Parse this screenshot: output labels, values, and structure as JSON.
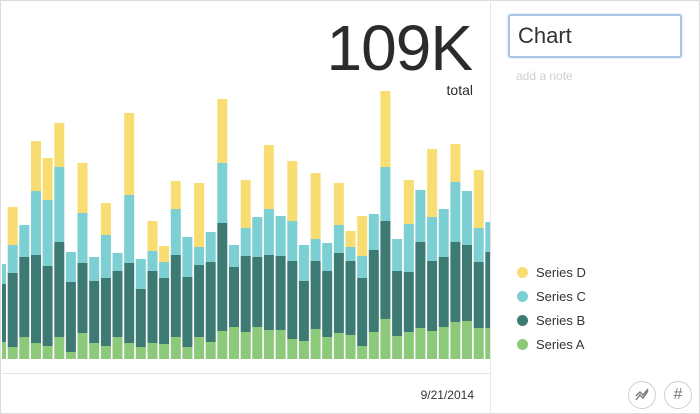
{
  "summary": {
    "value": "109K",
    "caption": "total"
  },
  "editor": {
    "title_value": "Chart",
    "note_placeholder": "add a note"
  },
  "toolbar": {
    "chart_icon": "line-chart-icon",
    "number_icon": "hash-icon",
    "number_glyph": "#"
  },
  "colors": {
    "series_a": "#8dc97a",
    "series_b": "#3d7a74",
    "series_c": "#7ccfd3",
    "series_d": "#f8de72"
  },
  "chart_data": {
    "type": "bar",
    "stacked": true,
    "x_label_last": "9/21/2014",
    "legend_position": "right",
    "grid": false,
    "y_unit": "px-free values in arbitrary units",
    "series": [
      {
        "name": "Series A",
        "color": "#8dc97a",
        "values": [
          17,
          12,
          22,
          16,
          13,
          22,
          7,
          26,
          16,
          13,
          22,
          16,
          12,
          16,
          15,
          22,
          12,
          22,
          17,
          28,
          32,
          27,
          32,
          29,
          29,
          20,
          18,
          30,
          22,
          26,
          24,
          13,
          27,
          40,
          23,
          27,
          31,
          28,
          32,
          37,
          38,
          31,
          31,
          24,
          22,
          32,
          16,
          38,
          35,
          27,
          28,
          18,
          36,
          31
        ]
      },
      {
        "name": "Series B",
        "color": "#3d7a74",
        "values": [
          58,
          74,
          80,
          88,
          80,
          95,
          70,
          70,
          62,
          68,
          66,
          80,
          58,
          72,
          66,
          82,
          70,
          72,
          80,
          108,
          60,
          76,
          70,
          75,
          74,
          78,
          60,
          68,
          66,
          80,
          74,
          68,
          82,
          98,
          65,
          60,
          86,
          70,
          70,
          80,
          76,
          66,
          76,
          86,
          78,
          82,
          68,
          98,
          82,
          76,
          68,
          72,
          80,
          68
        ]
      },
      {
        "name": "Series C",
        "color": "#7ccfd3",
        "values": [
          20,
          28,
          32,
          64,
          66,
          75,
          30,
          50,
          24,
          43,
          18,
          68,
          30,
          20,
          16,
          46,
          40,
          18,
          30,
          60,
          22,
          28,
          40,
          46,
          40,
          40,
          36,
          22,
          28,
          28,
          14,
          22,
          36,
          54,
          32,
          48,
          52,
          44,
          48,
          60,
          54,
          34,
          30,
          66,
          40,
          40,
          24,
          54,
          28,
          42,
          30,
          30,
          36,
          24
        ]
      },
      {
        "name": "Series D",
        "color": "#f8de72",
        "values": [
          0,
          38,
          0,
          50,
          42,
          44,
          0,
          50,
          0,
          32,
          0,
          82,
          0,
          30,
          16,
          28,
          0,
          64,
          0,
          64,
          0,
          48,
          0,
          64,
          0,
          60,
          0,
          66,
          0,
          42,
          16,
          40,
          0,
          76,
          0,
          44,
          0,
          68,
          0,
          38,
          0,
          58,
          0,
          48,
          0,
          44,
          0,
          94,
          0,
          40,
          0,
          28,
          0,
          30
        ]
      }
    ]
  },
  "legend": {
    "items": [
      {
        "label": "Series D",
        "color": "#f8de72"
      },
      {
        "label": "Series C",
        "color": "#7ccfd3"
      },
      {
        "label": "Series B",
        "color": "#3d7a74"
      },
      {
        "label": "Series A",
        "color": "#8dc97a"
      }
    ]
  }
}
